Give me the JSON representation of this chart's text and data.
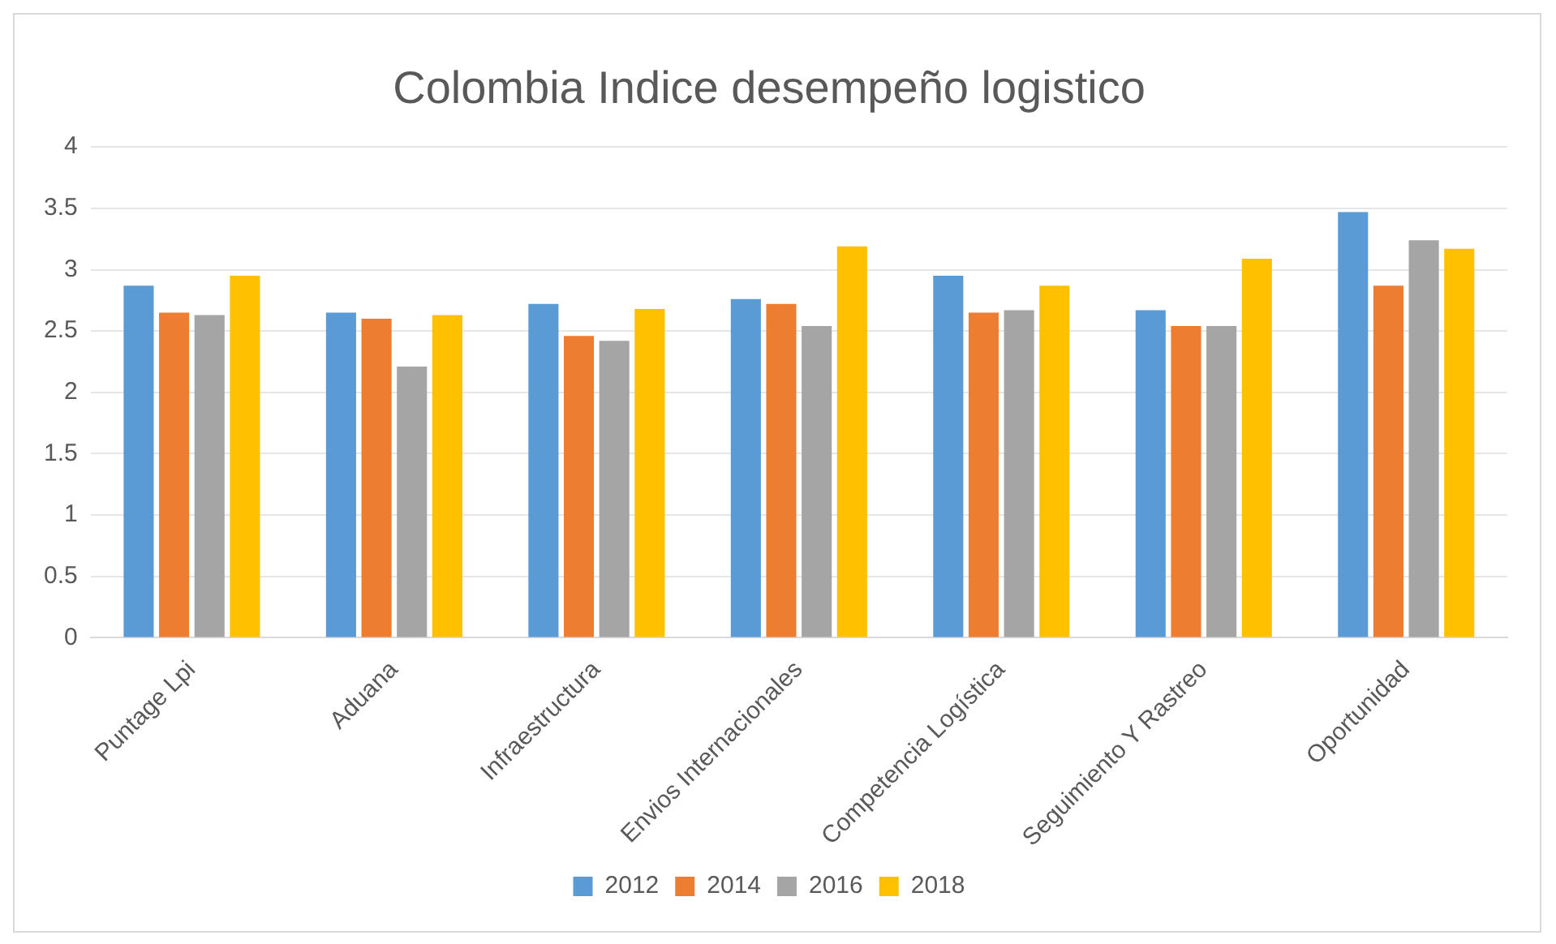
{
  "chart_data": {
    "type": "bar",
    "title": "Colombia Indice desempeño logistico",
    "categories": [
      "Puntage Lpi",
      "Aduana",
      "Infraestructura",
      "Envios Internacionales",
      "Competencia Logística",
      "Seguimiento Y Rastreo",
      "Oportunidad"
    ],
    "series": [
      {
        "name": "2012",
        "color": "#5b9bd5",
        "values": [
          2.87,
          2.65,
          2.72,
          2.76,
          2.95,
          2.67,
          3.47
        ]
      },
      {
        "name": "2014",
        "color": "#ed7d31",
        "values": [
          2.65,
          2.6,
          2.46,
          2.72,
          2.65,
          2.54,
          2.87
        ]
      },
      {
        "name": "2016",
        "color": "#a5a5a5",
        "values": [
          2.63,
          2.21,
          2.42,
          2.54,
          2.67,
          2.54,
          3.24
        ]
      },
      {
        "name": "2018",
        "color": "#ffc000",
        "values": [
          2.95,
          2.63,
          2.68,
          3.19,
          2.87,
          3.09,
          3.17
        ]
      }
    ],
    "ylim": [
      0,
      4
    ],
    "yticks": [
      0,
      0.5,
      1,
      1.5,
      2,
      2.5,
      3,
      3.5,
      4
    ],
    "grid": "y",
    "legend": "bottom"
  }
}
